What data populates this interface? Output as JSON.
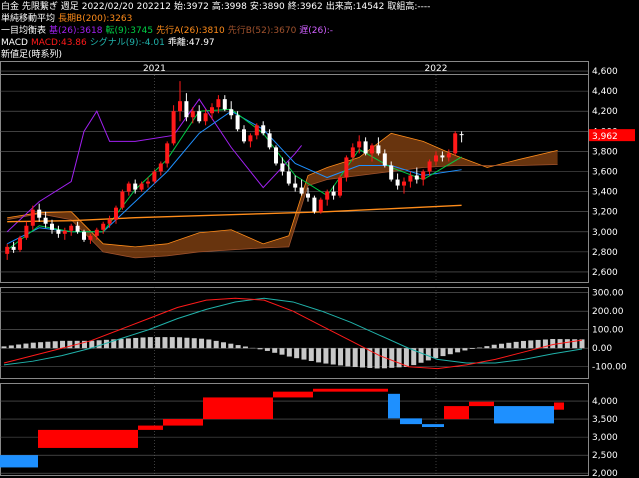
{
  "header": {
    "line1": {
      "instrument": "白金 先限繋ぎ 週足",
      "date": "2022/02/20",
      "contract": "202212",
      "open": "始:3972",
      "high": "高:3998",
      "low": "安:3890",
      "close": "終:3962",
      "volume": "出来高:14542",
      "oi": "取組高:----"
    },
    "line2": {
      "label": "単純移動平均",
      "ma": "長期B(200):3263"
    },
    "line3": {
      "label": "一目均衡表",
      "base": "基(26):3618",
      "conv": "転(9):3745",
      "spanA": "先行A(26):3810",
      "spanB": "先行B(52):3670",
      "lag": "遅(26):-"
    },
    "line4": {
      "label": "MACD",
      "macd": "MACD:43.86",
      "signal": "シグナル(9):-4.01",
      "diff": "乖離:47.97"
    },
    "line5": {
      "label": "新値足(時系列)"
    }
  },
  "colors": {
    "up": "#ff1a1a",
    "down": "#ffffff",
    "ma200": "#ff8c1a",
    "cloud": "#8b4513",
    "conv": "#00cc44",
    "base": "#1e90ff",
    "lag": "#a020f0",
    "macd": "#ff1a1a",
    "signal": "#20b2aa",
    "hist": "#c8c8c8",
    "newhigh": "#ff0000",
    "newlow": "#1e90ff",
    "price_tag": "#ff0000",
    "grid": "#666666"
  },
  "chart_data": [
    {
      "type": "candlestick",
      "x_labels": [
        "2021",
        "2022"
      ],
      "yticks": [
        "4,600",
        "4,400",
        "4,200",
        "4,000",
        "3,800",
        "3,600",
        "3,400",
        "3,200",
        "3,000",
        "2,800",
        "2,600"
      ],
      "ylim": [
        2500,
        4700
      ],
      "current_price": "3,962",
      "candles_ohlc": [
        [
          2780,
          2880,
          2720,
          2850
        ],
        [
          2850,
          2900,
          2790,
          2820
        ],
        [
          2820,
          2960,
          2800,
          2940
        ],
        [
          2940,
          3100,
          2920,
          3060
        ],
        [
          3060,
          3260,
          3020,
          3220
        ],
        [
          3220,
          3280,
          3100,
          3140
        ],
        [
          3140,
          3200,
          3040,
          3080
        ],
        [
          3080,
          3120,
          2980,
          3020
        ],
        [
          3020,
          3060,
          2940,
          2980
        ],
        [
          2980,
          3040,
          2920,
          3010
        ],
        [
          3010,
          3080,
          2960,
          3060
        ],
        [
          3060,
          3100,
          2980,
          3000
        ],
        [
          3000,
          3020,
          2900,
          2920
        ],
        [
          2920,
          2980,
          2880,
          2960
        ],
        [
          2960,
          3040,
          2920,
          3020
        ],
        [
          3020,
          3100,
          2980,
          3080
        ],
        [
          3080,
          3160,
          3040,
          3120
        ],
        [
          3120,
          3260,
          3080,
          3240
        ],
        [
          3240,
          3420,
          3220,
          3400
        ],
        [
          3400,
          3500,
          3360,
          3480
        ],
        [
          3480,
          3520,
          3380,
          3420
        ],
        [
          3420,
          3500,
          3400,
          3480
        ],
        [
          3480,
          3540,
          3440,
          3500
        ],
        [
          3500,
          3620,
          3480,
          3600
        ],
        [
          3600,
          3700,
          3560,
          3680
        ],
        [
          3680,
          3900,
          3640,
          3880
        ],
        [
          3880,
          4260,
          3860,
          4200
        ],
        [
          4200,
          4500,
          4100,
          4300
        ],
        [
          4300,
          4380,
          4100,
          4140
        ],
        [
          4140,
          4240,
          4080,
          4200
        ],
        [
          4200,
          4260,
          4080,
          4100
        ],
        [
          4100,
          4220,
          4060,
          4180
        ],
        [
          4180,
          4280,
          4120,
          4240
        ],
        [
          4240,
          4360,
          4180,
          4320
        ],
        [
          4320,
          4360,
          4200,
          4220
        ],
        [
          4220,
          4300,
          4120,
          4160
        ],
        [
          4160,
          4200,
          4000,
          4020
        ],
        [
          4020,
          4060,
          3880,
          3900
        ],
        [
          3900,
          3980,
          3840,
          3960
        ],
        [
          3960,
          4080,
          3920,
          4060
        ],
        [
          4060,
          4100,
          3960,
          3980
        ],
        [
          3980,
          4020,
          3820,
          3840
        ],
        [
          3840,
          3860,
          3660,
          3680
        ],
        [
          3680,
          3740,
          3560,
          3600
        ],
        [
          3600,
          3700,
          3460,
          3480
        ],
        [
          3480,
          3560,
          3400,
          3440
        ],
        [
          3440,
          3520,
          3360,
          3380
        ],
        [
          3380,
          3440,
          3300,
          3340
        ],
        [
          3340,
          3360,
          3180,
          3200
        ],
        [
          3200,
          3340,
          3180,
          3320
        ],
        [
          3320,
          3420,
          3260,
          3400
        ],
        [
          3400,
          3460,
          3320,
          3360
        ],
        [
          3360,
          3560,
          3340,
          3540
        ],
        [
          3540,
          3760,
          3500,
          3740
        ],
        [
          3740,
          3880,
          3700,
          3840
        ],
        [
          3840,
          3960,
          3780,
          3900
        ],
        [
          3900,
          3940,
          3760,
          3780
        ],
        [
          3780,
          3880,
          3700,
          3860
        ],
        [
          3860,
          3940,
          3760,
          3780
        ],
        [
          3780,
          3820,
          3640,
          3660
        ],
        [
          3660,
          3700,
          3500,
          3520
        ],
        [
          3520,
          3580,
          3420,
          3460
        ],
        [
          3460,
          3540,
          3380,
          3500
        ],
        [
          3500,
          3600,
          3440,
          3560
        ],
        [
          3560,
          3640,
          3480,
          3520
        ],
        [
          3520,
          3620,
          3460,
          3600
        ],
        [
          3600,
          3720,
          3560,
          3700
        ],
        [
          3700,
          3800,
          3660,
          3760
        ],
        [
          3760,
          3800,
          3700,
          3740
        ],
        [
          3740,
          3820,
          3700,
          3780
        ],
        [
          3780,
          4000,
          3760,
          3980
        ],
        [
          3972,
          3998,
          3890,
          3962
        ]
      ],
      "ma200": [
        [
          0,
          3100
        ],
        [
          10,
          3110
        ],
        [
          20,
          3140
        ],
        [
          30,
          3160
        ],
        [
          40,
          3180
        ],
        [
          50,
          3200
        ],
        [
          60,
          3230
        ],
        [
          71,
          3263
        ]
      ],
      "cloud_spanA": [
        [
          0,
          3140
        ],
        [
          5,
          3190
        ],
        [
          10,
          3200
        ],
        [
          15,
          2880
        ],
        [
          20,
          2850
        ],
        [
          25,
          2880
        ],
        [
          30,
          2990
        ],
        [
          35,
          3020
        ],
        [
          40,
          2880
        ],
        [
          44,
          2960
        ],
        [
          47,
          3560
        ],
        [
          50,
          3640
        ],
        [
          55,
          3740
        ],
        [
          60,
          3980
        ],
        [
          65,
          3900
        ],
        [
          70,
          3760
        ],
        [
          75,
          3640
        ],
        [
          80,
          3720
        ],
        [
          86,
          3810
        ]
      ],
      "cloud_spanB": [
        [
          0,
          3120
        ],
        [
          5,
          3180
        ],
        [
          10,
          3120
        ],
        [
          15,
          2800
        ],
        [
          20,
          2740
        ],
        [
          25,
          2760
        ],
        [
          30,
          2800
        ],
        [
          35,
          2820
        ],
        [
          40,
          2840
        ],
        [
          44,
          2850
        ],
        [
          47,
          3460
        ],
        [
          50,
          3520
        ],
        [
          55,
          3560
        ],
        [
          60,
          3600
        ],
        [
          65,
          3640
        ],
        [
          70,
          3660
        ],
        [
          75,
          3660
        ],
        [
          80,
          3660
        ],
        [
          86,
          3670
        ]
      ],
      "conversion_line": [
        [
          0,
          2820
        ],
        [
          5,
          3060
        ],
        [
          10,
          3000
        ],
        [
          15,
          3000
        ],
        [
          20,
          3420
        ],
        [
          25,
          3720
        ],
        [
          30,
          4200
        ],
        [
          35,
          4220
        ],
        [
          40,
          3980
        ],
        [
          45,
          3560
        ],
        [
          50,
          3360
        ],
        [
          55,
          3820
        ],
        [
          60,
          3640
        ],
        [
          65,
          3520
        ],
        [
          71,
          3745
        ]
      ],
      "base_line": [
        [
          0,
          2880
        ],
        [
          5,
          3040
        ],
        [
          10,
          3000
        ],
        [
          15,
          3000
        ],
        [
          20,
          3300
        ],
        [
          25,
          3600
        ],
        [
          30,
          3980
        ],
        [
          35,
          4200
        ],
        [
          40,
          4020
        ],
        [
          45,
          3680
        ],
        [
          50,
          3540
        ],
        [
          55,
          3660
        ],
        [
          60,
          3660
        ],
        [
          65,
          3560
        ],
        [
          71,
          3618
        ]
      ],
      "lagging_span": [
        [
          0,
          3000
        ],
        [
          5,
          3300
        ],
        [
          10,
          3500
        ],
        [
          12,
          4000
        ],
        [
          14,
          4200
        ],
        [
          16,
          3900
        ],
        [
          20,
          3900
        ],
        [
          26,
          3960
        ],
        [
          30,
          4320
        ],
        [
          35,
          3840
        ],
        [
          40,
          3440
        ],
        [
          45,
          3780
        ],
        [
          46,
          3860
        ]
      ]
    },
    {
      "type": "macd",
      "yticks": [
        "300.00",
        "200.00",
        "100.00",
        "0.00",
        "-100.00"
      ],
      "ylim": [
        -150,
        320
      ],
      "macd": [
        -80,
        -40,
        0,
        40,
        100,
        160,
        220,
        260,
        270,
        260,
        200,
        120,
        40,
        -40,
        -100,
        -110,
        -90,
        -60,
        -20,
        20,
        44
      ],
      "signal": [
        -90,
        -70,
        -40,
        0,
        50,
        100,
        160,
        210,
        250,
        270,
        250,
        200,
        140,
        70,
        0,
        -60,
        -80,
        -80,
        -60,
        -30,
        -4
      ],
      "histogram": [
        10,
        30,
        40,
        40,
        50,
        60,
        60,
        50,
        20,
        -10,
        -50,
        -80,
        -100,
        -110,
        -100,
        -50,
        -10,
        20,
        40,
        50,
        48
      ]
    },
    {
      "type": "new_price_bars",
      "yticks": [
        "4,000",
        "3,500",
        "3,000",
        "2,500",
        "2,000"
      ],
      "ylim": [
        1950,
        4500
      ],
      "bars": [
        {
          "dir": "down",
          "from": 2500,
          "to": 2160
        },
        {
          "dir": "up",
          "from": 2700,
          "to": 3200
        },
        {
          "dir": "up",
          "from": 3200,
          "to": 3320
        },
        {
          "dir": "up",
          "from": 3320,
          "to": 3500
        },
        {
          "dir": "up",
          "from": 3500,
          "to": 4100
        },
        {
          "dir": "up",
          "from": 4100,
          "to": 4260
        },
        {
          "dir": "up",
          "from": 4260,
          "to": 4340
        },
        {
          "dir": "down",
          "from": 4200,
          "to": 3520
        },
        {
          "dir": "down",
          "from": 3520,
          "to": 3360
        },
        {
          "dir": "down",
          "from": 3360,
          "to": 3280
        },
        {
          "dir": "up",
          "from": 3500,
          "to": 3860
        },
        {
          "dir": "up",
          "from": 3860,
          "to": 3980
        },
        {
          "dir": "down",
          "from": 3860,
          "to": 3380
        },
        {
          "dir": "up",
          "from": 3760,
          "to": 3960
        }
      ]
    }
  ]
}
